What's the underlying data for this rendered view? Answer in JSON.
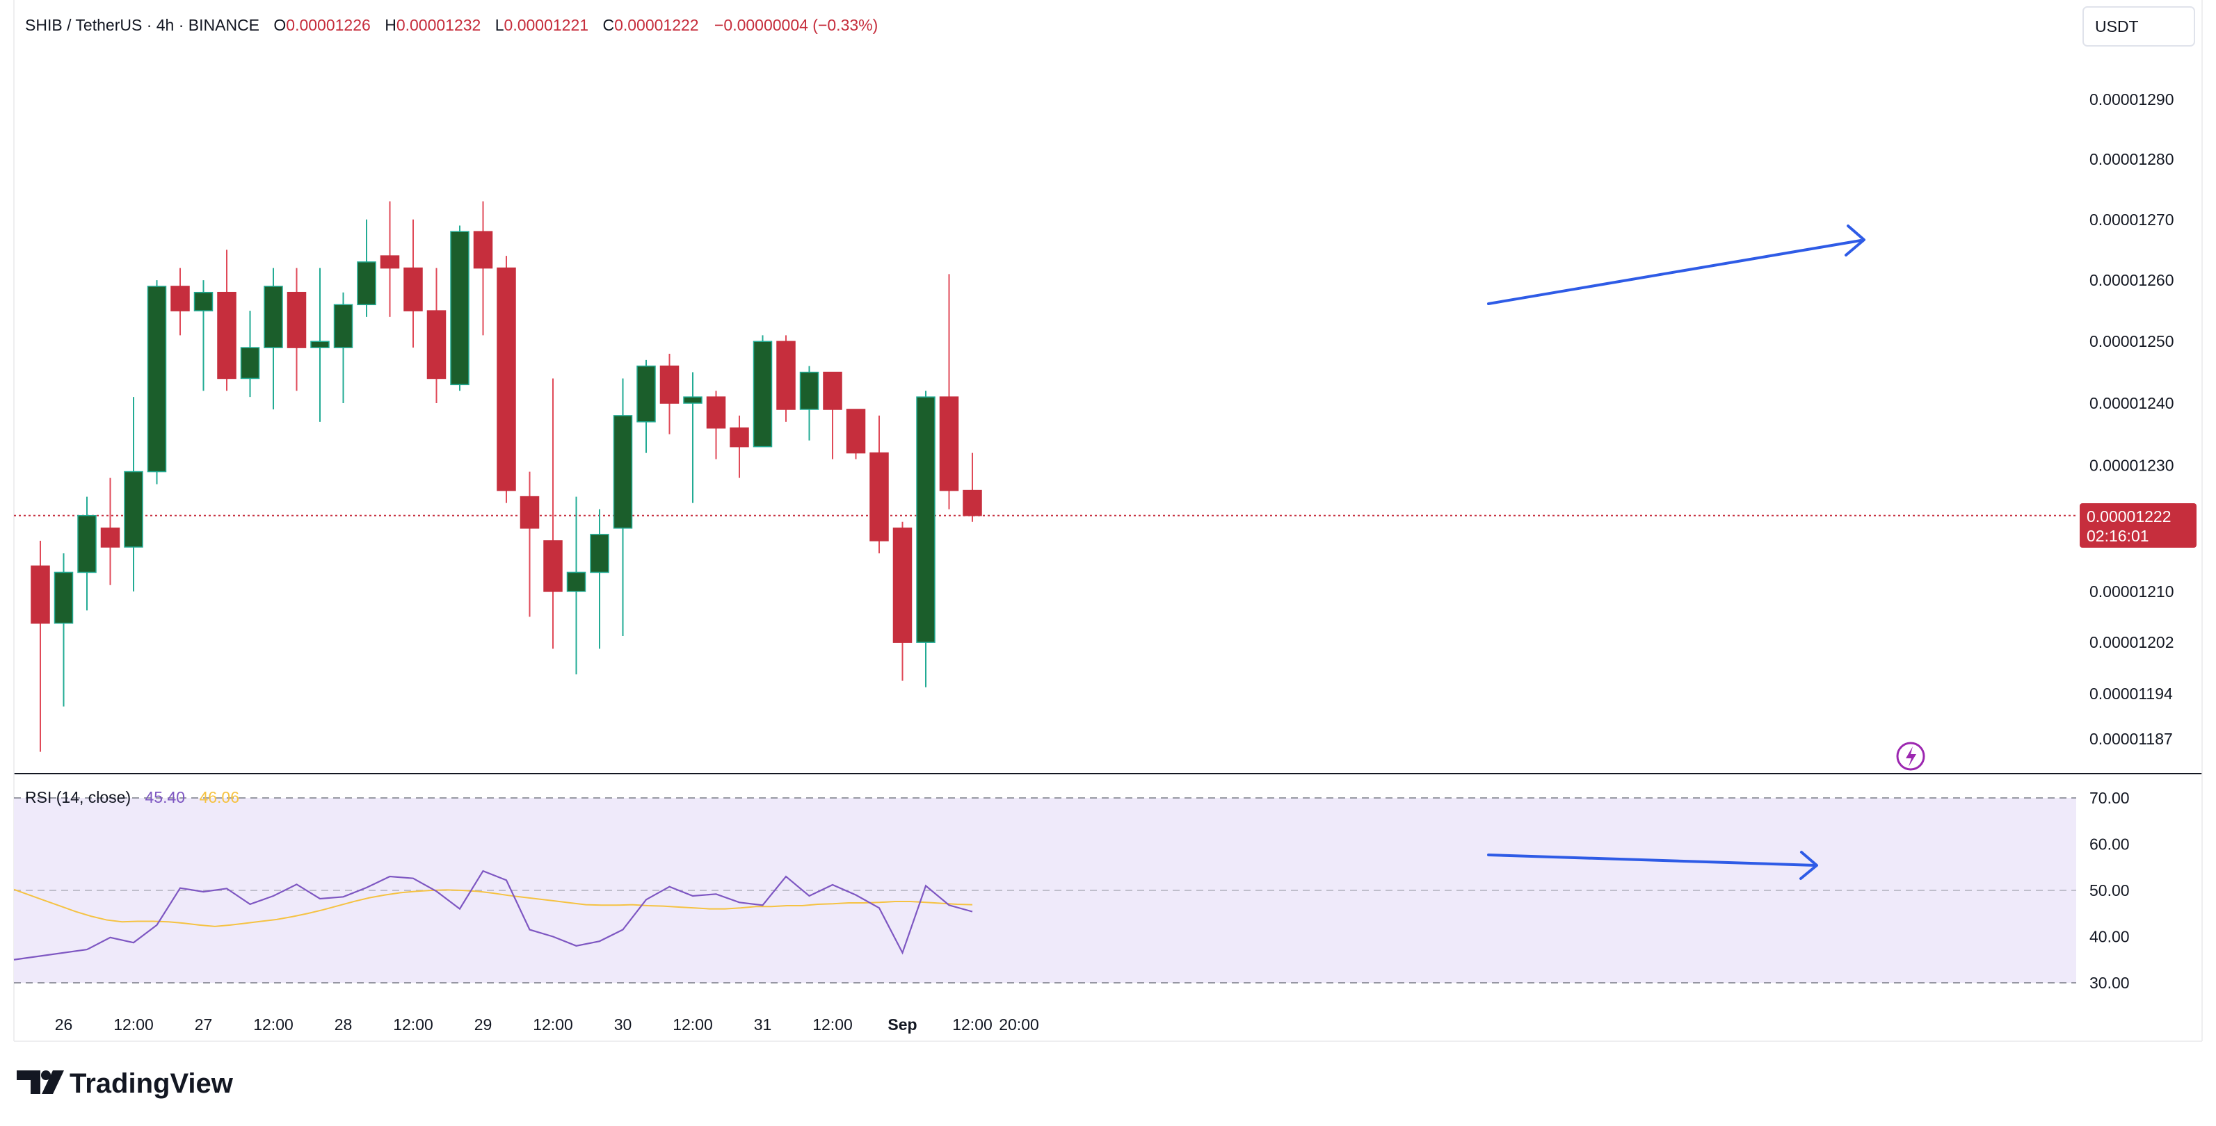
{
  "header": {
    "symbol": "SHIB / TetherUS · 4h · BINANCE",
    "o_label": "O",
    "o_value": "0.00001226",
    "h_label": "H",
    "h_value": "0.00001232",
    "l_label": "L",
    "l_value": "0.00001221",
    "c_label": "C",
    "c_value": "0.00001222",
    "change": "−0.00000004 (−0.33%)"
  },
  "currency_button": "USDT",
  "price_tag": {
    "price": "0.00001222",
    "countdown": "02:16:01"
  },
  "rsi_header": {
    "label": "RSI (14, close)",
    "value1": "45.40",
    "value2": "46.06"
  },
  "brand": {
    "name": "TradingView"
  },
  "colors": {
    "up": "#1b5e2b",
    "down": "#c62e3d",
    "rsi": "#7e57c2",
    "rsi_ma": "#f5c242",
    "arrow": "#2e5be6",
    "band": "#efeafa"
  },
  "chart_data": [
    {
      "type": "candlestick",
      "title": "SHIB / TetherUS · 4h · BINANCE",
      "y_axis": {
        "scale": "log",
        "ticks": [
          "0.00001290",
          "0.00001280",
          "0.00001270",
          "0.00001260",
          "0.00001250",
          "0.00001240",
          "0.00001230",
          "0.00001210",
          "0.00001202",
          "0.00001194",
          "0.00001187"
        ]
      },
      "x_axis": {
        "ticks": [
          {
            "label": "26",
            "index": 1
          },
          {
            "label": "12:00",
            "index": 4
          },
          {
            "label": "27",
            "index": 7
          },
          {
            "label": "12:00",
            "index": 10
          },
          {
            "label": "28",
            "index": 13
          },
          {
            "label": "12:00",
            "index": 16
          },
          {
            "label": "29",
            "index": 19
          },
          {
            "label": "12:00",
            "index": 22
          },
          {
            "label": "30",
            "index": 25
          },
          {
            "label": "12:00",
            "index": 28
          },
          {
            "label": "31",
            "index": 31
          },
          {
            "label": "12:00",
            "index": 34
          },
          {
            "label": "Sep",
            "index": 37
          },
          {
            "label": "12:00",
            "index": 40
          },
          {
            "label": "20:00",
            "index": 42
          }
        ]
      },
      "candles": [
        {
          "o": 1.214e-05,
          "h": 1.218e-05,
          "l": 1.185e-05,
          "c": 1.205e-05
        },
        {
          "o": 1.205e-05,
          "h": 1.216e-05,
          "l": 1.192e-05,
          "c": 1.213e-05
        },
        {
          "o": 1.213e-05,
          "h": 1.225e-05,
          "l": 1.207e-05,
          "c": 1.222e-05
        },
        {
          "o": 1.22e-05,
          "h": 1.228e-05,
          "l": 1.211e-05,
          "c": 1.217e-05
        },
        {
          "o": 1.217e-05,
          "h": 1.241e-05,
          "l": 1.21e-05,
          "c": 1.229e-05
        },
        {
          "o": 1.229e-05,
          "h": 1.26e-05,
          "l": 1.227e-05,
          "c": 1.259e-05
        },
        {
          "o": 1.259e-05,
          "h": 1.262e-05,
          "l": 1.251e-05,
          "c": 1.255e-05
        },
        {
          "o": 1.255e-05,
          "h": 1.26e-05,
          "l": 1.242e-05,
          "c": 1.258e-05
        },
        {
          "o": 1.258e-05,
          "h": 1.265e-05,
          "l": 1.242e-05,
          "c": 1.244e-05
        },
        {
          "o": 1.244e-05,
          "h": 1.255e-05,
          "l": 1.241e-05,
          "c": 1.249e-05
        },
        {
          "o": 1.249e-05,
          "h": 1.262e-05,
          "l": 1.239e-05,
          "c": 1.259e-05
        },
        {
          "o": 1.258e-05,
          "h": 1.262e-05,
          "l": 1.242e-05,
          "c": 1.249e-05
        },
        {
          "o": 1.249e-05,
          "h": 1.262e-05,
          "l": 1.237e-05,
          "c": 1.25e-05
        },
        {
          "o": 1.249e-05,
          "h": 1.258e-05,
          "l": 1.24e-05,
          "c": 1.256e-05
        },
        {
          "o": 1.256e-05,
          "h": 1.27e-05,
          "l": 1.254e-05,
          "c": 1.263e-05
        },
        {
          "o": 1.264e-05,
          "h": 1.273e-05,
          "l": 1.254e-05,
          "c": 1.262e-05
        },
        {
          "o": 1.262e-05,
          "h": 1.27e-05,
          "l": 1.249e-05,
          "c": 1.255e-05
        },
        {
          "o": 1.255e-05,
          "h": 1.262e-05,
          "l": 1.24e-05,
          "c": 1.244e-05
        },
        {
          "o": 1.243e-05,
          "h": 1.269e-05,
          "l": 1.242e-05,
          "c": 1.268e-05
        },
        {
          "o": 1.268e-05,
          "h": 1.273e-05,
          "l": 1.251e-05,
          "c": 1.262e-05
        },
        {
          "o": 1.262e-05,
          "h": 1.264e-05,
          "l": 1.224e-05,
          "c": 1.226e-05
        },
        {
          "o": 1.225e-05,
          "h": 1.229e-05,
          "l": 1.206e-05,
          "c": 1.22e-05
        },
        {
          "o": 1.218e-05,
          "h": 1.244e-05,
          "l": 1.201e-05,
          "c": 1.21e-05
        },
        {
          "o": 1.21e-05,
          "h": 1.225e-05,
          "l": 1.197e-05,
          "c": 1.213e-05
        },
        {
          "o": 1.213e-05,
          "h": 1.223e-05,
          "l": 1.201e-05,
          "c": 1.219e-05
        },
        {
          "o": 1.22e-05,
          "h": 1.244e-05,
          "l": 1.203e-05,
          "c": 1.238e-05
        },
        {
          "o": 1.237e-05,
          "h": 1.247e-05,
          "l": 1.232e-05,
          "c": 1.246e-05
        },
        {
          "o": 1.246e-05,
          "h": 1.248e-05,
          "l": 1.235e-05,
          "c": 1.24e-05
        },
        {
          "o": 1.24e-05,
          "h": 1.245e-05,
          "l": 1.224e-05,
          "c": 1.241e-05
        },
        {
          "o": 1.241e-05,
          "h": 1.242e-05,
          "l": 1.231e-05,
          "c": 1.236e-05
        },
        {
          "o": 1.236e-05,
          "h": 1.238e-05,
          "l": 1.228e-05,
          "c": 1.233e-05
        },
        {
          "o": 1.233e-05,
          "h": 1.251e-05,
          "l": 1.233e-05,
          "c": 1.25e-05
        },
        {
          "o": 1.25e-05,
          "h": 1.251e-05,
          "l": 1.237e-05,
          "c": 1.239e-05
        },
        {
          "o": 1.239e-05,
          "h": 1.246e-05,
          "l": 1.234e-05,
          "c": 1.245e-05
        },
        {
          "o": 1.245e-05,
          "h": 1.245e-05,
          "l": 1.231e-05,
          "c": 1.239e-05
        },
        {
          "o": 1.239e-05,
          "h": 1.239e-05,
          "l": 1.231e-05,
          "c": 1.232e-05
        },
        {
          "o": 1.232e-05,
          "h": 1.238e-05,
          "l": 1.216e-05,
          "c": 1.218e-05
        },
        {
          "o": 1.22e-05,
          "h": 1.221e-05,
          "l": 1.196e-05,
          "c": 1.202e-05
        },
        {
          "o": 1.202e-05,
          "h": 1.242e-05,
          "l": 1.195e-05,
          "c": 1.241e-05
        },
        {
          "o": 1.241e-05,
          "h": 1.261e-05,
          "l": 1.223e-05,
          "c": 1.226e-05
        },
        {
          "o": 1.226e-05,
          "h": 1.232e-05,
          "l": 1.221e-05,
          "c": 1.222e-05
        }
      ],
      "last_price": 1.222e-05
    },
    {
      "type": "line",
      "title": "RSI (14, close)",
      "y_axis": {
        "ticks": [
          "70.00",
          "60.00",
          "50.00",
          "40.00",
          "30.00"
        ],
        "range": [
          30,
          70
        ]
      },
      "series": [
        {
          "name": "RSI",
          "values": [
            35.0,
            37.2,
            39.8,
            38.7,
            42.5,
            50.5,
            49.7,
            50.4,
            47.0,
            48.8,
            51.3,
            48.2,
            48.6,
            50.6,
            53.0,
            52.6,
            49.8,
            46.0,
            54.2,
            52.2,
            41.5,
            40.0,
            38.0,
            39.0,
            41.5,
            48.0,
            50.8,
            48.8,
            49.2,
            47.4,
            46.8,
            53.0,
            48.8,
            51.2,
            49.0,
            46.2,
            36.5,
            51.0,
            46.8,
            45.4
          ]
        },
        {
          "name": "RSI-based MA",
          "values": [
            50.2,
            49.0,
            47.8,
            46.6,
            45.4,
            44.4,
            43.6,
            43.2,
            43.3,
            43.3,
            43.2,
            42.9,
            42.5,
            42.2,
            42.5,
            42.9,
            43.3,
            43.7,
            44.3,
            45.0,
            45.8,
            46.7,
            47.6,
            48.4,
            49.0,
            49.5,
            49.8,
            50.0,
            50.1,
            50.0,
            49.8,
            49.4,
            48.9,
            48.5,
            48.1,
            47.7,
            47.3,
            46.9,
            46.8,
            46.8,
            46.9,
            46.7,
            46.6,
            46.4,
            46.2,
            46.0,
            46.0,
            46.2,
            46.5,
            46.5,
            46.7,
            46.7,
            47.0,
            47.1,
            47.3,
            47.3,
            47.4,
            47.6,
            47.6,
            47.4,
            47.2,
            47.0,
            46.9
          ],
          "sample_count": 63
        }
      ]
    }
  ]
}
